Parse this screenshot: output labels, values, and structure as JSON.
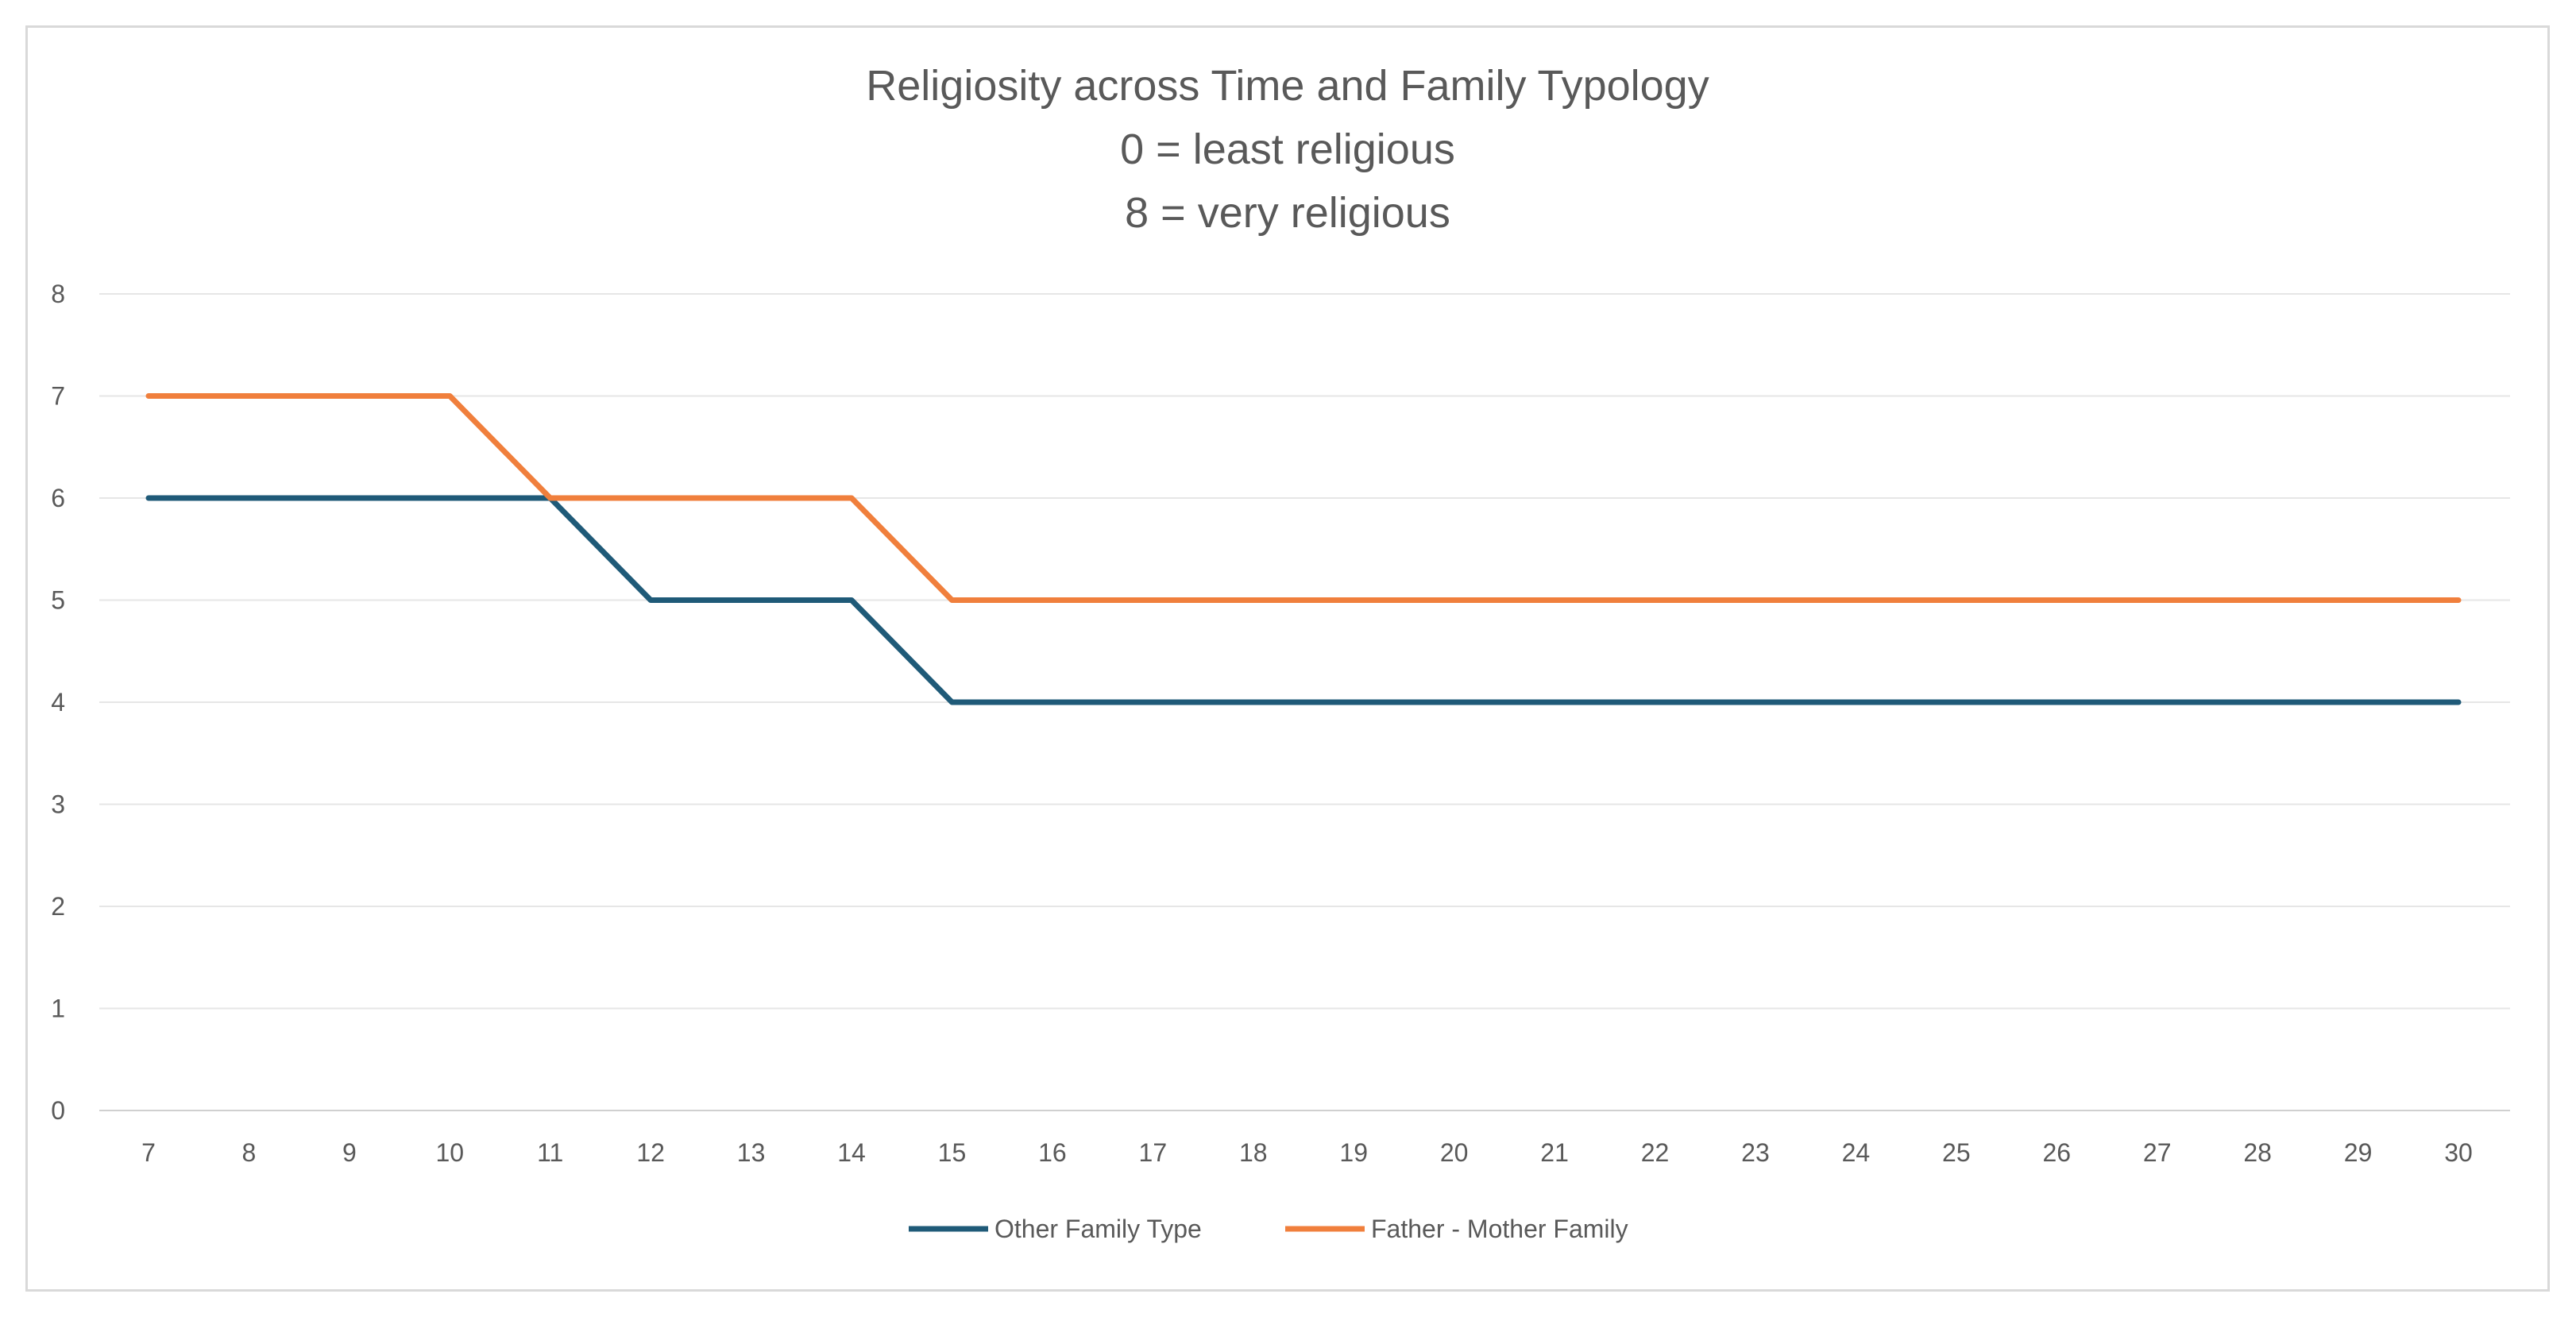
{
  "chart_data": {
    "type": "line",
    "title": [
      "Religiosity across Time and Family Typology",
      "0 = least religious",
      "8 = very religious"
    ],
    "xlabel": "",
    "ylabel": "",
    "x": [
      7,
      8,
      9,
      10,
      11,
      12,
      13,
      14,
      15,
      16,
      17,
      18,
      19,
      20,
      21,
      22,
      23,
      24,
      25,
      26,
      27,
      28,
      29,
      30
    ],
    "ylim": [
      0,
      8
    ],
    "yticks": [
      0,
      1,
      2,
      3,
      4,
      5,
      6,
      7,
      8
    ],
    "grid": true,
    "legend_position": "bottom",
    "series": [
      {
        "name": "Other Family Type",
        "color": "#1f5a78",
        "values": [
          6,
          6,
          6,
          6,
          6,
          5,
          5,
          5,
          4,
          4,
          4,
          4,
          4,
          4,
          4,
          4,
          4,
          4,
          4,
          4,
          4,
          4,
          4,
          4
        ]
      },
      {
        "name": "Father - Mother Family",
        "color": "#f07f3c",
        "values": [
          7,
          7,
          7,
          7,
          6,
          6,
          6,
          6,
          5,
          5,
          5,
          5,
          5,
          5,
          5,
          5,
          5,
          5,
          5,
          5,
          5,
          5,
          5,
          5
        ]
      }
    ]
  }
}
